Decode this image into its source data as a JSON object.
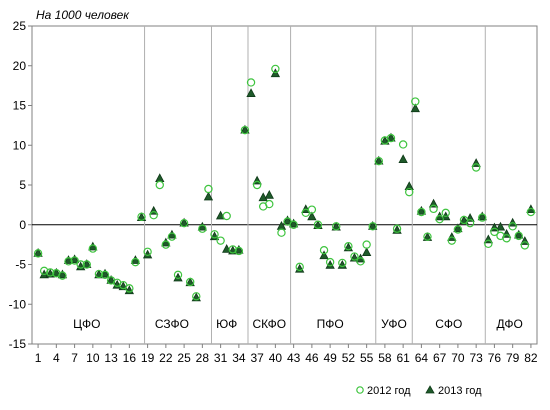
{
  "chart_data": {
    "type": "scatter",
    "unit_label": "На 1000 человек",
    "ylim": [
      -15,
      25
    ],
    "xlim": [
      0,
      83
    ],
    "y_ticks": [
      25,
      20,
      15,
      10,
      5,
      0,
      -5,
      -10,
      -15
    ],
    "x_ticks": [
      1,
      4,
      7,
      10,
      13,
      16,
      19,
      22,
      25,
      28,
      31,
      34,
      37,
      40,
      43,
      46,
      49,
      52,
      55,
      58,
      61,
      64,
      67,
      70,
      73,
      76,
      79,
      82
    ],
    "region_dividers": [
      18.5,
      29.5,
      35.5,
      42.5,
      56.5,
      62.5,
      74.5
    ],
    "region_labels": [
      {
        "text": "ЦФО",
        "x": 9
      },
      {
        "text": "СЗФО",
        "x": 23
      },
      {
        "text": "ЮФ",
        "x": 32
      },
      {
        "text": "СКФО",
        "x": 39
      },
      {
        "text": "ПФО",
        "x": 49
      },
      {
        "text": "УФО",
        "x": 59.5
      },
      {
        "text": "СФО",
        "x": 68.5
      },
      {
        "text": "ДФО",
        "x": 78.5
      }
    ],
    "region_label_y": -12.5,
    "grid": "horizontal zero line only",
    "legend_position": "bottom-right",
    "series": [
      {
        "name": "2012 год",
        "marker": "open-circle",
        "color": "#3ec43e",
        "values": [
          -3.6,
          -5.8,
          -6.0,
          -6.1,
          -6.4,
          -4.6,
          -4.5,
          -5.0,
          -5.0,
          -3.0,
          -6.2,
          -6.3,
          -7.0,
          -7.3,
          -7.6,
          -8.0,
          -4.7,
          1.0,
          -3.4,
          1.2,
          5.0,
          -2.5,
          -1.5,
          -6.3,
          0.2,
          -7.2,
          -9.0,
          -0.5,
          4.5,
          -1.2,
          -2.0,
          1.1,
          -3.1,
          -3.3,
          11.9,
          17.9,
          5.0,
          2.3,
          2.6,
          19.6,
          -1.0,
          0.4,
          0.0,
          -5.3,
          1.5,
          1.9,
          0.0,
          -3.2,
          -4.7,
          -0.2,
          -4.8,
          -2.7,
          -4.0,
          -4.6,
          -2.5,
          -0.2,
          8.0,
          10.6,
          10.9,
          -0.5,
          10.1,
          4.1,
          15.5,
          1.6,
          -1.5,
          2.0,
          0.7,
          1.5,
          -2.0,
          -0.6,
          0.6,
          0.2,
          7.2,
          0.9,
          -2.4,
          -0.9,
          -1.4,
          -1.7,
          -0.2,
          -1.4,
          -2.6,
          1.6
        ]
      },
      {
        "name": "2013 год",
        "marker": "filled-triangle",
        "color": "#1f5a2a",
        "values": [
          -3.6,
          -6.3,
          -6.2,
          -6.1,
          -6.3,
          -4.5,
          -4.4,
          -5.3,
          -5.0,
          -2.8,
          -6.3,
          -6.2,
          -7.0,
          -7.6,
          -7.8,
          -8.3,
          -4.5,
          0.9,
          -3.8,
          1.7,
          5.8,
          -2.3,
          -1.3,
          -6.7,
          0.2,
          -7.3,
          -9.2,
          -0.3,
          3.5,
          -1.5,
          1.1,
          -3.1,
          -3.3,
          -3.2,
          11.9,
          16.5,
          5.5,
          3.4,
          3.7,
          19.0,
          -0.2,
          0.5,
          0.1,
          -5.6,
          1.9,
          1.0,
          -0.1,
          -3.9,
          -5.1,
          -0.3,
          -5.1,
          -2.9,
          -4.2,
          -4.3,
          -3.5,
          -0.2,
          8.0,
          10.5,
          10.9,
          -0.7,
          8.2,
          4.8,
          14.6,
          1.7,
          -1.6,
          2.6,
          1.0,
          1.0,
          -1.6,
          -0.5,
          0.5,
          0.8,
          7.7,
          1.0,
          -1.9,
          -0.4,
          -0.3,
          -1.2,
          0.2,
          -1.3,
          -2.1,
          1.9
        ]
      }
    ]
  }
}
